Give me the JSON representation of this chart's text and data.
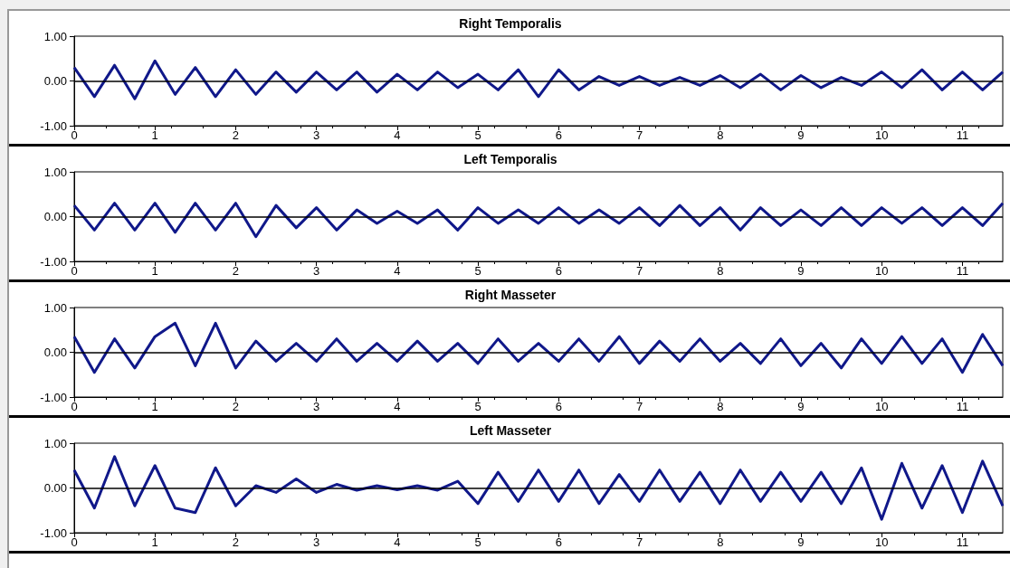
{
  "chart_data": [
    {
      "type": "line",
      "title": "Right Temporalis",
      "x": [
        0,
        0.25,
        0.5,
        0.75,
        1,
        1.25,
        1.5,
        1.75,
        2,
        2.25,
        2.5,
        2.75,
        3,
        3.25,
        3.5,
        3.75,
        4,
        4.25,
        4.5,
        4.75,
        5,
        5.25,
        5.5,
        5.75,
        6,
        6.25,
        6.5,
        6.75,
        7,
        7.25,
        7.5,
        7.75,
        8,
        8.25,
        8.5,
        8.75,
        9,
        9.25,
        9.5,
        9.75,
        10,
        10.25,
        10.5,
        10.75,
        11,
        11.25,
        11.5
      ],
      "series": [
        {
          "color": "#10188a",
          "values": [
            0.3,
            -0.35,
            0.35,
            -0.4,
            0.45,
            -0.3,
            0.3,
            -0.35,
            0.25,
            -0.3,
            0.2,
            -0.25,
            0.2,
            -0.2,
            0.2,
            -0.25,
            0.15,
            -0.2,
            0.2,
            -0.15,
            0.15,
            -0.2,
            0.25,
            -0.35,
            0.25,
            -0.2,
            0.1,
            -0.1,
            0.1,
            -0.1,
            0.08,
            -0.1,
            0.12,
            -0.15,
            0.15,
            -0.2,
            0.12,
            -0.15,
            0.08,
            -0.1,
            0.2,
            -0.15,
            0.25,
            -0.2,
            0.2,
            -0.2,
            0.2
          ]
        }
      ],
      "xlim": [
        0,
        11.5
      ],
      "xticks": [
        0,
        1,
        2,
        3,
        4,
        5,
        6,
        7,
        8,
        9,
        10,
        11
      ],
      "ylim": [
        -1,
        1
      ],
      "yticks": [
        {
          "value": -1,
          "label": "-1.00"
        },
        {
          "value": 0,
          "label": "0.00"
        },
        {
          "value": 1,
          "label": "1.00"
        }
      ],
      "ref_lines": [
        {
          "axis": "y",
          "value": 0,
          "color": "#000000"
        }
      ],
      "grid": false,
      "marker": "none",
      "line_style": "solid"
    },
    {
      "type": "line",
      "title": "Left Temporalis",
      "x": [
        0,
        0.25,
        0.5,
        0.75,
        1,
        1.25,
        1.5,
        1.75,
        2,
        2.25,
        2.5,
        2.75,
        3,
        3.25,
        3.5,
        3.75,
        4,
        4.25,
        4.5,
        4.75,
        5,
        5.25,
        5.5,
        5.75,
        6,
        6.25,
        6.5,
        6.75,
        7,
        7.25,
        7.5,
        7.75,
        8,
        8.25,
        8.5,
        8.75,
        9,
        9.25,
        9.5,
        9.75,
        10,
        10.25,
        10.5,
        10.75,
        11,
        11.25,
        11.5
      ],
      "series": [
        {
          "color": "#10188a",
          "values": [
            0.25,
            -0.3,
            0.3,
            -0.3,
            0.3,
            -0.35,
            0.3,
            -0.3,
            0.3,
            -0.45,
            0.25,
            -0.25,
            0.2,
            -0.3,
            0.15,
            -0.15,
            0.12,
            -0.15,
            0.15,
            -0.3,
            0.2,
            -0.15,
            0.15,
            -0.15,
            0.2,
            -0.15,
            0.15,
            -0.15,
            0.2,
            -0.2,
            0.25,
            -0.2,
            0.2,
            -0.3,
            0.2,
            -0.2,
            0.15,
            -0.2,
            0.2,
            -0.2,
            0.2,
            -0.15,
            0.2,
            -0.2,
            0.2,
            -0.2,
            0.3
          ]
        }
      ],
      "xlim": [
        0,
        11.5
      ],
      "xticks": [
        0,
        1,
        2,
        3,
        4,
        5,
        6,
        7,
        8,
        9,
        10,
        11
      ],
      "ylim": [
        -1,
        1
      ],
      "yticks": [
        {
          "value": -1,
          "label": "-1.00"
        },
        {
          "value": 0,
          "label": "0.00"
        },
        {
          "value": 1,
          "label": "1.00"
        }
      ],
      "ref_lines": [
        {
          "axis": "y",
          "value": 0,
          "color": "#000000"
        }
      ],
      "grid": false,
      "marker": "none",
      "line_style": "solid"
    },
    {
      "type": "line",
      "title": "Right Masseter",
      "x": [
        0,
        0.25,
        0.5,
        0.75,
        1,
        1.25,
        1.5,
        1.75,
        2,
        2.25,
        2.5,
        2.75,
        3,
        3.25,
        3.5,
        3.75,
        4,
        4.25,
        4.5,
        4.75,
        5,
        5.25,
        5.5,
        5.75,
        6,
        6.25,
        6.5,
        6.75,
        7,
        7.25,
        7.5,
        7.75,
        8,
        8.25,
        8.5,
        8.75,
        9,
        9.25,
        9.5,
        9.75,
        10,
        10.25,
        10.5,
        10.75,
        11,
        11.25,
        11.5
      ],
      "series": [
        {
          "color": "#10188a",
          "values": [
            0.35,
            -0.45,
            0.3,
            -0.35,
            0.35,
            0.65,
            -0.3,
            0.65,
            -0.35,
            0.25,
            -0.2,
            0.2,
            -0.2,
            0.3,
            -0.2,
            0.2,
            -0.2,
            0.25,
            -0.2,
            0.2,
            -0.25,
            0.3,
            -0.2,
            0.2,
            -0.2,
            0.3,
            -0.2,
            0.35,
            -0.25,
            0.25,
            -0.2,
            0.3,
            -0.2,
            0.2,
            -0.25,
            0.3,
            -0.3,
            0.2,
            -0.35,
            0.3,
            -0.25,
            0.35,
            -0.25,
            0.3,
            -0.45,
            0.4,
            -0.3
          ]
        }
      ],
      "xlim": [
        0,
        11.5
      ],
      "xticks": [
        0,
        1,
        2,
        3,
        4,
        5,
        6,
        7,
        8,
        9,
        10,
        11
      ],
      "ylim": [
        -1,
        1
      ],
      "yticks": [
        {
          "value": -1,
          "label": "-1.00"
        },
        {
          "value": 0,
          "label": "0.00"
        },
        {
          "value": 1,
          "label": "1.00"
        }
      ],
      "ref_lines": [
        {
          "axis": "y",
          "value": 0,
          "color": "#000000"
        }
      ],
      "grid": false,
      "marker": "none",
      "line_style": "solid"
    },
    {
      "type": "line",
      "title": "Left Masseter",
      "x": [
        0,
        0.25,
        0.5,
        0.75,
        1,
        1.25,
        1.5,
        1.75,
        2,
        2.25,
        2.5,
        2.75,
        3,
        3.25,
        3.5,
        3.75,
        4,
        4.25,
        4.5,
        4.75,
        5,
        5.25,
        5.5,
        5.75,
        6,
        6.25,
        6.5,
        6.75,
        7,
        7.25,
        7.5,
        7.75,
        8,
        8.25,
        8.5,
        8.75,
        9,
        9.25,
        9.5,
        9.75,
        10,
        10.25,
        10.5,
        10.75,
        11,
        11.25,
        11.5
      ],
      "series": [
        {
          "color": "#10188a",
          "values": [
            0.4,
            -0.45,
            0.7,
            -0.4,
            0.5,
            -0.45,
            -0.55,
            0.45,
            -0.4,
            0.05,
            -0.1,
            0.2,
            -0.1,
            0.08,
            -0.05,
            0.05,
            -0.04,
            0.05,
            -0.05,
            0.15,
            -0.35,
            0.35,
            -0.3,
            0.4,
            -0.3,
            0.4,
            -0.35,
            0.3,
            -0.3,
            0.4,
            -0.3,
            0.35,
            -0.35,
            0.4,
            -0.3,
            0.35,
            -0.3,
            0.35,
            -0.35,
            0.45,
            -0.7,
            0.55,
            -0.45,
            0.5,
            -0.55,
            0.6,
            -0.4
          ]
        }
      ],
      "xlim": [
        0,
        11.5
      ],
      "xticks": [
        0,
        1,
        2,
        3,
        4,
        5,
        6,
        7,
        8,
        9,
        10,
        11
      ],
      "ylim": [
        -1,
        1
      ],
      "yticks": [
        {
          "value": -1,
          "label": "-1.00"
        },
        {
          "value": 0,
          "label": "0.00"
        },
        {
          "value": 1,
          "label": "1.00"
        }
      ],
      "ref_lines": [
        {
          "axis": "y",
          "value": 0,
          "color": "#000000"
        }
      ],
      "grid": false,
      "marker": "none",
      "line_style": "solid"
    }
  ]
}
